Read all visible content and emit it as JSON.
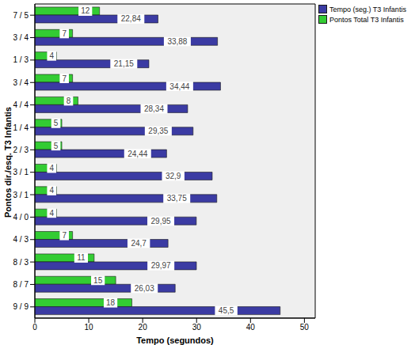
{
  "chart_data": {
    "type": "bar",
    "orientation": "horizontal",
    "x_label": "Tempo (segundos)",
    "y_label": "Pontos dir./esq. T3 Infantis",
    "categories": [
      "7 / 5",
      "3 / 4",
      "1 / 3",
      "3 / 4",
      "4 / 4",
      "1 / 4",
      "2 / 3",
      "3 / 1",
      "3 / 1",
      "4 / 0",
      "4 / 3",
      "8 / 3",
      "8 / 7",
      "9 / 9"
    ],
    "series": [
      {
        "name": "Tempo (seg.) T3 Infantis",
        "color": "#3b3ba3",
        "values": [
          22.84,
          33.88,
          21.15,
          34.44,
          28.34,
          29.35,
          24.44,
          32.9,
          33.75,
          29.95,
          24.7,
          29.97,
          26.03,
          45.5
        ],
        "value_labels": [
          "22,84",
          "33,88",
          "21,15",
          "34,44",
          "28,34",
          "29,35",
          "24,44",
          "32,9",
          "33,75",
          "29,95",
          "24,7",
          "29,97",
          "26,03",
          "45,5"
        ]
      },
      {
        "name": "Pontos Total T3 Infantis",
        "color": "#33cc33",
        "values": [
          12,
          7,
          4,
          7,
          8,
          5,
          5,
          4,
          4,
          4,
          7,
          11,
          15,
          18
        ]
      }
    ],
    "xlim": [
      0,
      52
    ],
    "xticks": [
      0,
      10,
      20,
      30,
      40,
      50
    ],
    "data_labels": true,
    "legend": "top-right",
    "grid": false
  }
}
